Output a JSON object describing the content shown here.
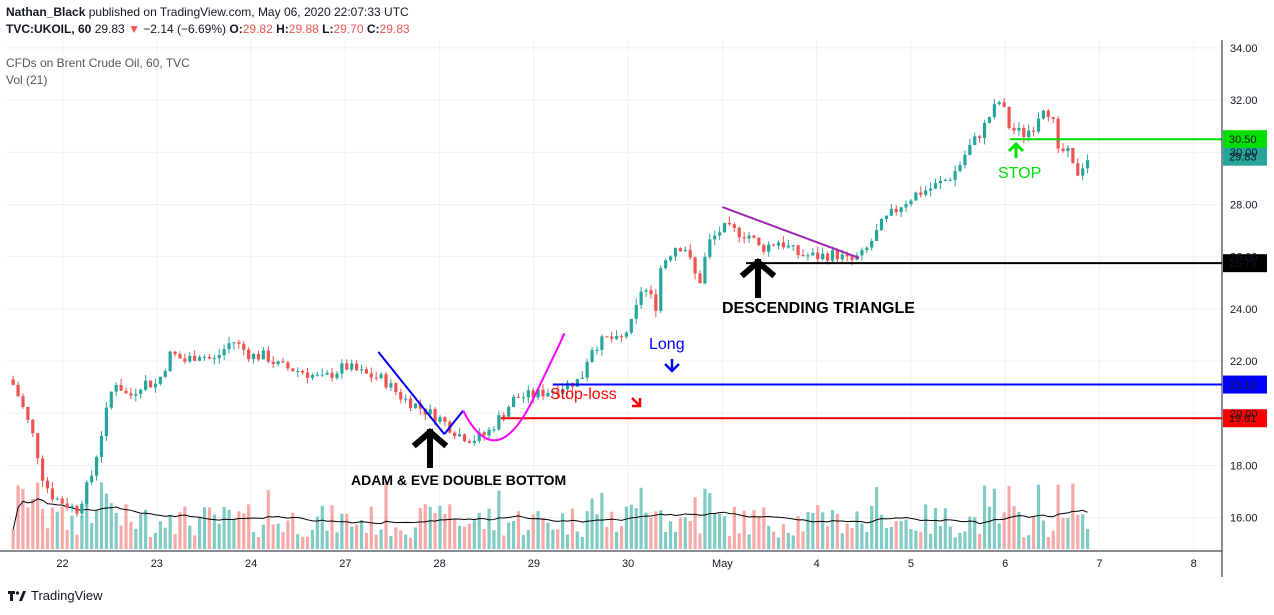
{
  "header": {
    "author": "Nathan_Black",
    "published_text": "published on TradingView.com, May 06, 2020 22:07:33 UTC",
    "symbol": "TVC:UKOIL, 60",
    "last": "29.83",
    "change_arrow": "▼",
    "change": "−2.14 (−6.69%)",
    "o_label": "O:",
    "o": "29.82",
    "h_label": "H:",
    "h": "29.88",
    "l_label": "L:",
    "l": "29.70",
    "c_label": "C:",
    "c": "29.83"
  },
  "legend": {
    "series": "CFDs on Brent Crude Oil, 60, TVC",
    "volume": "Vol (21)"
  },
  "footer": {
    "brand": "TradingView"
  },
  "colors": {
    "up": "#26a69a",
    "down": "#ef5350",
    "up_vol": "#80cbc4",
    "down_vol": "#f7a9a7",
    "grid": "#eef0f3",
    "blue": "#0000ff",
    "red": "#ff0000",
    "green": "#00e000",
    "black": "#000000",
    "purple": "#9c27b0",
    "magenta": "#ff00ff",
    "teal_label": "#26a69a"
  },
  "chart_data": {
    "type": "candlestick",
    "ylim": [
      14.8,
      34.3
    ],
    "y_ticks": [
      "16.00",
      "18.00",
      "20.00",
      "22.00",
      "24.00",
      "26.00",
      "28.00",
      "30.00",
      "32.00",
      "34.00"
    ],
    "x_ticks": [
      "22",
      "23",
      "24",
      "27",
      "28",
      "29",
      "30",
      "May",
      "4",
      "5",
      "6",
      "7",
      "8"
    ],
    "x_ticks_index": [
      0,
      1,
      2,
      3,
      4,
      5,
      6,
      7,
      8,
      9,
      10,
      11,
      12
    ],
    "xlim": [
      -0.6,
      12.3
    ],
    "price_anchors": [
      [
        -0.55,
        21.3
      ],
      [
        -0.45,
        20.5
      ],
      [
        -0.3,
        19.0
      ],
      [
        -0.2,
        17.4
      ],
      [
        -0.1,
        16.8
      ],
      [
        0.0,
        16.6
      ],
      [
        0.15,
        16.3
      ],
      [
        0.3,
        17.5
      ],
      [
        0.45,
        19.8
      ],
      [
        0.55,
        21.3
      ],
      [
        0.7,
        20.6
      ],
      [
        0.85,
        21.2
      ],
      [
        1.0,
        21.1
      ],
      [
        1.15,
        22.3
      ],
      [
        1.3,
        22.0
      ],
      [
        1.45,
        22.3
      ],
      [
        1.6,
        22.0
      ],
      [
        1.8,
        22.8
      ],
      [
        2.0,
        22.2
      ],
      [
        2.15,
        22.2
      ],
      [
        2.3,
        21.8
      ],
      [
        2.55,
        21.6
      ],
      [
        2.75,
        21.3
      ],
      [
        3.0,
        21.8
      ],
      [
        3.2,
        21.5
      ],
      [
        3.4,
        21.3
      ],
      [
        3.6,
        20.6
      ],
      [
        3.8,
        20.2
      ],
      [
        4.0,
        19.8
      ],
      [
        4.2,
        19.2
      ],
      [
        4.35,
        19.0
      ],
      [
        4.5,
        19.2
      ],
      [
        4.65,
        19.9
      ],
      [
        4.8,
        20.6
      ],
      [
        5.0,
        20.7
      ],
      [
        5.2,
        20.9
      ],
      [
        5.35,
        21.1
      ],
      [
        5.5,
        21.3
      ],
      [
        5.6,
        22.5
      ],
      [
        5.8,
        22.9
      ],
      [
        5.9,
        22.7
      ],
      [
        6.05,
        23.5
      ],
      [
        6.15,
        24.9
      ],
      [
        6.3,
        24.1
      ],
      [
        6.35,
        25.7
      ],
      [
        6.5,
        26.4
      ],
      [
        6.6,
        26.4
      ],
      [
        6.75,
        24.9
      ],
      [
        6.85,
        26.5
      ],
      [
        7.0,
        27.1
      ],
      [
        7.1,
        27.0
      ],
      [
        7.3,
        26.8
      ],
      [
        7.4,
        26.3
      ],
      [
        7.6,
        26.6
      ],
      [
        7.8,
        26.1
      ],
      [
        8.0,
        26.0
      ],
      [
        8.2,
        26.1
      ],
      [
        8.35,
        25.8
      ],
      [
        8.5,
        26.1
      ],
      [
        8.7,
        27.3
      ],
      [
        8.9,
        28.0
      ],
      [
        9.05,
        28.4
      ],
      [
        9.2,
        28.6
      ],
      [
        9.4,
        29.0
      ],
      [
        9.5,
        29.4
      ],
      [
        9.6,
        30.1
      ],
      [
        9.75,
        30.8
      ],
      [
        9.85,
        31.5
      ],
      [
        9.95,
        32.0
      ],
      [
        10.05,
        30.9
      ],
      [
        10.2,
        30.7
      ],
      [
        10.3,
        31.0
      ],
      [
        10.4,
        31.8
      ],
      [
        10.5,
        31.4
      ],
      [
        10.55,
        29.9
      ],
      [
        10.65,
        30.1
      ],
      [
        10.75,
        29.1
      ],
      [
        10.85,
        29.7
      ],
      [
        10.9,
        29.83
      ]
    ],
    "volume_ylim": [
      0,
      1.0
    ],
    "levels": [
      {
        "label": "30.50",
        "price": 30.5,
        "color": "#00e000",
        "x_start": 10.05
      },
      {
        "label": "25.75",
        "price": 25.75,
        "color": "#000000",
        "x_start": 7.25
      },
      {
        "label": "21.10",
        "price": 21.1,
        "color": "#0000ff",
        "x_start": 5.2
      },
      {
        "label": "19.81",
        "price": 19.81,
        "color": "#ff0000",
        "x_start": 4.65
      }
    ],
    "last_price_label": "29.83",
    "annotations": {
      "double_bottom": "ADAM & EVE DOUBLE BOTTOM",
      "descending_triangle": "DESCENDING TRIANGLE",
      "long": "Long",
      "stop_loss": "Stop-loss",
      "stop": "STOP"
    }
  }
}
